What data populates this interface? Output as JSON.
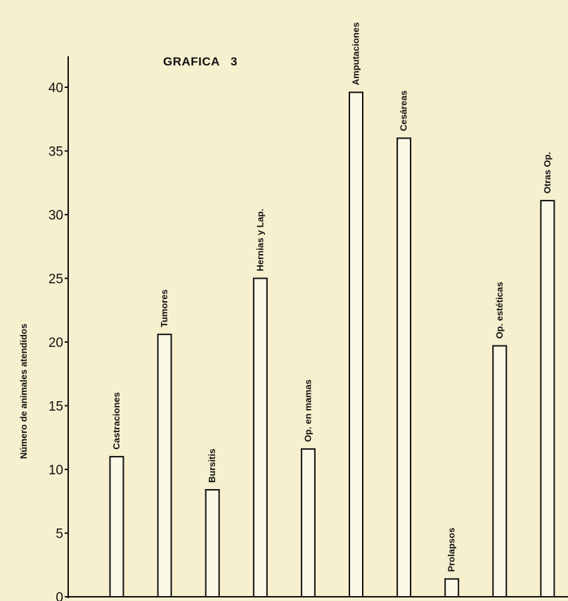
{
  "chart_data": {
    "type": "bar",
    "title": "GRAFICA   3",
    "ylabel": "Número de animales atendidos",
    "xlabel": "",
    "categories": [
      "Castraciones",
      "Tumores",
      "Bursitis",
      "Hernias y Lap.",
      "Op. en mamas",
      "Amputaciones",
      "Cesáreas",
      "Prolapsos",
      "Op. estéticas",
      "Otras Op."
    ],
    "values": [
      11,
      20.6,
      8.4,
      25,
      11.6,
      39.6,
      36,
      1.4,
      19.7,
      31.1
    ],
    "ylim": [
      0,
      40
    ],
    "yticks": [
      0,
      5,
      10,
      15,
      20,
      25,
      30,
      35,
      40
    ],
    "grid": false,
    "legend": "none",
    "colors": {
      "background": "#f6f0cf",
      "bar_fill": "#fbf8e6",
      "ink": "#111111"
    }
  }
}
